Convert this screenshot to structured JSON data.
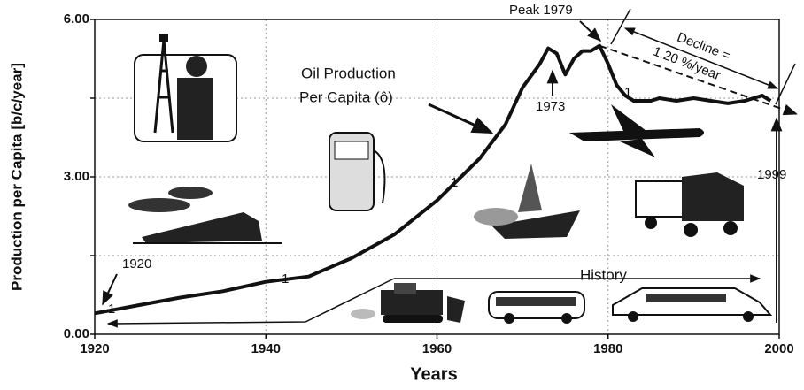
{
  "chart_data": {
    "type": "line",
    "x_label": "Years",
    "y_label": "Production per Capita [b/c/year]",
    "x": [
      1920,
      1925,
      1930,
      1935,
      1940,
      1945,
      1950,
      1955,
      1960,
      1965,
      1968,
      1970,
      1972,
      1973,
      1974,
      1975,
      1976,
      1977,
      1978,
      1979,
      1980,
      1981,
      1982,
      1983,
      1985,
      1986,
      1988,
      1990,
      1992,
      1994,
      1996,
      1998,
      1999
    ],
    "values": [
      0.4,
      0.55,
      0.7,
      0.82,
      1.0,
      1.1,
      1.45,
      1.9,
      2.55,
      3.35,
      4.0,
      4.7,
      5.15,
      5.45,
      5.35,
      4.95,
      5.25,
      5.4,
      5.4,
      5.5,
      5.15,
      4.75,
      4.55,
      4.45,
      4.45,
      4.5,
      4.45,
      4.5,
      4.45,
      4.4,
      4.45,
      4.55,
      4.45
    ],
    "color": "#111111",
    "trend": {
      "x": [
        1979,
        2002
      ],
      "values": [
        5.5,
        4.2
      ]
    },
    "xlim": [
      1920,
      2000
    ],
    "xticks": [
      1920,
      1940,
      1960,
      1980,
      2000
    ],
    "ylim": [
      0,
      6
    ],
    "yticks": [
      {
        "value": 0,
        "label": "0.00"
      },
      {
        "value": 3,
        "label": "3.00"
      },
      {
        "value": 6,
        "label": "6.00"
      }
    ],
    "y_minor_ticks": [
      1.5,
      4.5
    ],
    "grid": true,
    "annotations": {
      "peak": "Peak 1979",
      "y1973": "1973",
      "y1999": "1999",
      "y1920": "1920",
      "series_label_1": "Oil Production",
      "series_label_2": "Per Capita (ô)",
      "decline_1": "Decline =",
      "decline_2": "1.20 %/year",
      "history": "History",
      "marker": "1"
    }
  }
}
